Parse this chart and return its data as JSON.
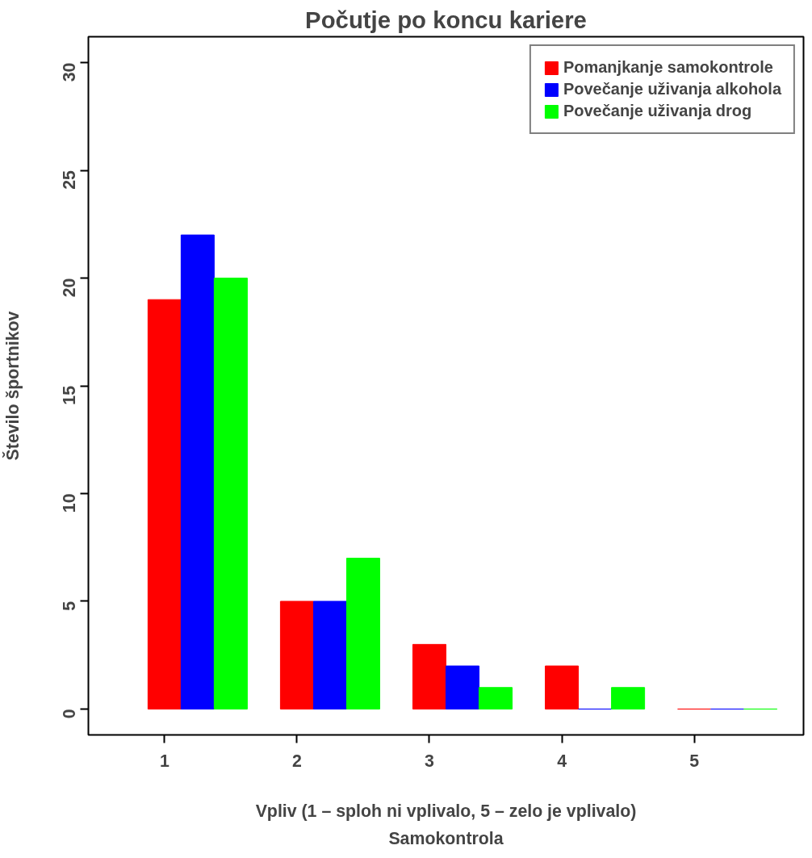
{
  "chart_data": {
    "type": "bar",
    "title": "Počutje po koncu kariere",
    "subtitle": "Samokontrola",
    "xlabel": "Vpliv (1 – sploh ni vplivalo, 5 – zelo je vplivalo)",
    "ylabel": "Število športnikov",
    "categories": [
      "1",
      "2",
      "3",
      "4",
      "5"
    ],
    "series": [
      {
        "name": "Pomanjkanje samokontrole",
        "color": "#ff0000",
        "values": [
          19,
          5,
          3,
          2,
          0
        ]
      },
      {
        "name": "Povečanje uživanja alkohola",
        "color": "#0000ff",
        "values": [
          22,
          5,
          2,
          0,
          0
        ]
      },
      {
        "name": "Povečanje uživanja drog",
        "color": "#00ff00",
        "values": [
          20,
          7,
          1,
          1,
          0
        ]
      }
    ],
    "ylim": [
      0,
      30
    ],
    "yticks": [
      0,
      5,
      10,
      15,
      20,
      25,
      30
    ],
    "grid": false,
    "legend": "top right"
  }
}
